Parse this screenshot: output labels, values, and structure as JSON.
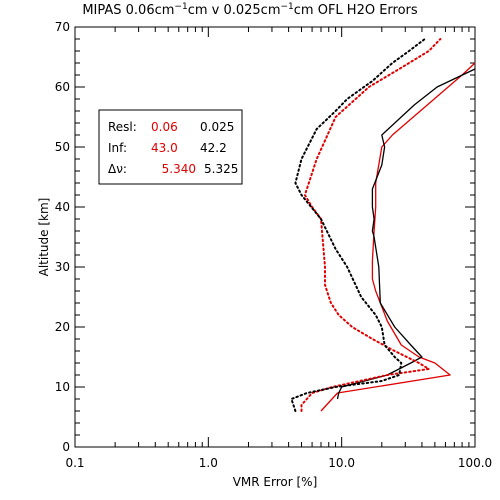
{
  "chart_data": {
    "type": "line",
    "title_parts": [
      "MIPAS 0.06cm",
      "−1",
      "cm v 0.025cm",
      "−1",
      "cm OFL H2O Errors"
    ],
    "xlabel": "VMR Error [%]",
    "ylabel": "Altitude [km]",
    "xscale": "log",
    "xlim": [
      0.1,
      100
    ],
    "ylim": [
      0,
      70
    ],
    "xticks": [
      0.1,
      1,
      10,
      100
    ],
    "xtick_labels": [
      "0.1",
      "1.0",
      "10.0",
      "100.0"
    ],
    "yticks": [
      0,
      10,
      20,
      30,
      40,
      50,
      60,
      70
    ],
    "ytick_labels": [
      "0",
      "10",
      "20",
      "30",
      "40",
      "50",
      "60",
      "70"
    ],
    "grid": false,
    "legend": {
      "placement": "upper-left",
      "rows": [
        {
          "label": "Resl:",
          "red": "0.06",
          "black": "0.025"
        },
        {
          "label": "Inf:",
          "red": "43.0",
          "black": "42.2"
        },
        {
          "label": "Δν:",
          "red": "5.340",
          "black": "5.325"
        }
      ]
    },
    "colors": {
      "red": "#e00000",
      "black": "#000000"
    },
    "series": [
      {
        "color": "red",
        "style": "solid",
        "points": [
          [
            7,
            6
          ],
          [
            9.3,
            9
          ],
          [
            65,
            12
          ],
          [
            50,
            14
          ],
          [
            38,
            15
          ],
          [
            28,
            17
          ],
          [
            22,
            21
          ],
          [
            18,
            26
          ],
          [
            17,
            28
          ],
          [
            17,
            31
          ],
          [
            17.5,
            36
          ],
          [
            18,
            40
          ],
          [
            18,
            44
          ],
          [
            20,
            50
          ],
          [
            24,
            52
          ],
          [
            80,
            62
          ],
          [
            100,
            64
          ]
        ]
      },
      {
        "color": "black",
        "style": "solid",
        "points": [
          [
            9.3,
            8
          ],
          [
            9.5,
            9
          ],
          [
            10,
            10
          ],
          [
            22,
            12
          ],
          [
            33,
            14
          ],
          [
            40,
            15
          ],
          [
            33,
            17
          ],
          [
            25,
            20
          ],
          [
            19.5,
            24
          ],
          [
            19,
            30
          ],
          [
            17.5,
            35
          ],
          [
            17,
            36
          ],
          [
            17.5,
            38
          ],
          [
            17,
            40
          ],
          [
            17,
            43
          ],
          [
            20,
            47
          ],
          [
            21,
            50
          ],
          [
            20,
            52
          ],
          [
            35,
            57
          ],
          [
            52,
            60
          ],
          [
            100,
            63
          ]
        ]
      },
      {
        "color": "red",
        "style": "dotted",
        "points": [
          [
            5,
            6
          ],
          [
            5,
            7
          ],
          [
            6,
            9
          ],
          [
            8.5,
            10
          ],
          [
            22,
            12
          ],
          [
            45,
            13
          ],
          [
            38,
            14
          ],
          [
            25,
            16
          ],
          [
            17,
            18
          ],
          [
            12,
            20
          ],
          [
            9.5,
            22
          ],
          [
            8.3,
            24
          ],
          [
            7.5,
            27
          ],
          [
            7.5,
            30
          ],
          [
            7,
            38
          ],
          [
            6,
            40
          ],
          [
            5.3,
            42
          ],
          [
            6.5,
            48
          ],
          [
            9,
            55
          ],
          [
            16,
            60
          ],
          [
            27,
            63
          ],
          [
            45,
            66
          ],
          [
            55,
            68
          ]
        ]
      },
      {
        "color": "black",
        "style": "dotted",
        "points": [
          [
            4.5,
            6
          ],
          [
            4.2,
            8
          ],
          [
            5.5,
            9
          ],
          [
            9,
            10
          ],
          [
            20,
            11
          ],
          [
            27,
            12
          ],
          [
            28,
            14
          ],
          [
            25,
            15
          ],
          [
            21,
            17
          ],
          [
            20,
            20
          ],
          [
            18,
            22
          ],
          [
            14,
            25
          ],
          [
            11,
            30
          ],
          [
            9,
            33
          ],
          [
            7,
            38
          ],
          [
            5,
            42
          ],
          [
            4.5,
            44
          ],
          [
            5,
            48
          ],
          [
            6.5,
            53
          ],
          [
            9,
            56
          ],
          [
            11,
            58
          ],
          [
            17,
            61
          ],
          [
            24,
            64
          ],
          [
            32,
            66
          ],
          [
            42,
            68
          ]
        ]
      }
    ]
  }
}
